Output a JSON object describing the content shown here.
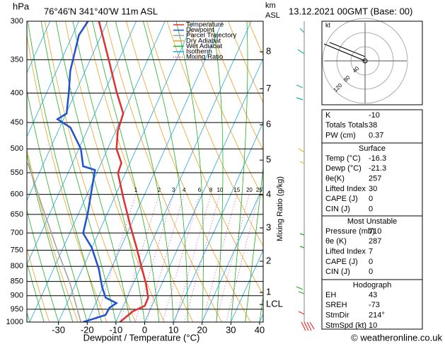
{
  "chart_data": {
    "type": "skewt",
    "title": "76°46'N  341°40'W  11m  ASL",
    "y_unit": "hPa",
    "km_unit": [
      "km",
      "ASL"
    ],
    "date": "13.12.2021  00GMT  (Base: 00)",
    "x_label": "Dewpoint / Temperature (°C)",
    "mixing_ratio_title": "Mixing Ratio (g/kg)",
    "xlim": [
      -40,
      41
    ],
    "xticks": [
      -30,
      -20,
      -10,
      0,
      10,
      20,
      30,
      40
    ],
    "ylim": [
      1000,
      300
    ],
    "log_scale": true,
    "yticks": [
      300,
      350,
      400,
      450,
      500,
      550,
      600,
      650,
      700,
      750,
      800,
      850,
      900,
      950,
      1000
    ],
    "km_ticks": [
      {
        "label": "8",
        "pressure": 339
      },
      {
        "label": "7",
        "pressure": 393
      },
      {
        "label": "6",
        "pressure": 454
      },
      {
        "label": "5",
        "pressure": 523
      },
      {
        "label": "4",
        "pressure": 601
      },
      {
        "label": "3",
        "pressure": 686
      },
      {
        "label": "2",
        "pressure": 784
      },
      {
        "label": "1",
        "pressure": 888
      },
      {
        "label": "LCL",
        "pressure": 932
      }
    ],
    "mixing_ratios": [
      1,
      2,
      3,
      4,
      6,
      8,
      10,
      15,
      20,
      25
    ],
    "legend": [
      {
        "name": "Temperature",
        "color": "#e03030",
        "style": "solid"
      },
      {
        "name": "Dewpoint",
        "color": "#2050d0",
        "style": "solid"
      },
      {
        "name": "Parcel Trajectory",
        "color": "#a0a0a0",
        "style": "solid"
      },
      {
        "name": "Dry Adiabat",
        "color": "#f0a020",
        "style": "solid"
      },
      {
        "name": "Wet Adiabat",
        "color": "#20b020",
        "style": "solid"
      },
      {
        "name": "Isotherm",
        "color": "#20a8e0",
        "style": "solid"
      },
      {
        "name": "Mixing Ratio",
        "color": "#d020c0",
        "style": "dotted"
      }
    ],
    "series": [
      {
        "name": "Temperature",
        "color": "#e03030",
        "pressure": [
          1000,
          958,
          937,
          907,
          857,
          797,
          742,
          682,
          609,
          551,
          529,
          500,
          465,
          434,
          398,
          355,
          300
        ],
        "values": [
          -8.6,
          -5.8,
          -2.5,
          -2.6,
          -5.6,
          -10.1,
          -14.5,
          -19.9,
          -26.8,
          -32.6,
          -33,
          -36.9,
          -39.3,
          -40.1,
          -45.8,
          -52.7,
          -63
        ]
      },
      {
        "name": "Dewpoint",
        "color": "#2050d0",
        "pressure": [
          1000,
          972,
          945,
          927,
          907,
          869,
          808,
          742,
          701,
          645,
          544,
          536,
          500,
          459,
          444,
          434,
          398,
          366,
          317,
          300
        ],
        "values": [
          -21.4,
          -14.7,
          -14.5,
          -12.8,
          -17.4,
          -20.3,
          -24.3,
          -30.1,
          -35.3,
          -36.9,
          -41.1,
          -45.8,
          -49.3,
          -56.3,
          -62.1,
          -59.8,
          -62.4,
          -65.2,
          -67.8,
          -66.8
        ]
      },
      {
        "name": "Parcel Trajectory",
        "color": "#a0a0a0",
        "pressure": [
          1000,
          857,
          742,
          627,
          529
        ],
        "values": [
          -22.2,
          -32,
          -42.4,
          -54,
          -65.6
        ]
      }
    ],
    "hodograph": {
      "unit": "kt",
      "rings": [
        {
          "value": 40,
          "label": "40"
        },
        {
          "value": 80,
          "label": "80"
        },
        {
          "value": 120,
          "label": "120"
        }
      ]
    },
    "indices": {
      "rows": [
        [
          "K",
          "-10"
        ],
        [
          "Totals Totals",
          "38"
        ],
        [
          "PW (cm)",
          "0.37"
        ]
      ]
    },
    "surface": {
      "title": "Surface",
      "rows": [
        [
          "Temp (°C)",
          "-16.3"
        ],
        [
          "Dewp (°C)",
          "-21.3"
        ],
        [
          "θe(K)",
          "257"
        ],
        [
          "Lifted Index",
          "30"
        ],
        [
          "CAPE (J)",
          "0"
        ],
        [
          "CIN (J)",
          "0"
        ]
      ]
    },
    "most_unstable": {
      "title": "Most Unstable",
      "rows": [
        [
          "Pressure (mb)",
          "710"
        ],
        [
          "θe (K)",
          "287"
        ],
        [
          "Lifted Index",
          "7"
        ],
        [
          "CAPE (J)",
          "0"
        ],
        [
          "CIN (J)",
          "0"
        ]
      ]
    },
    "hodograph_table": {
      "title": "Hodograph",
      "rows": [
        [
          "EH",
          "43"
        ],
        [
          "SREH",
          "-73"
        ],
        [
          "StmDir",
          "214°"
        ],
        [
          "StmSpd (kt)",
          "10"
        ]
      ]
    },
    "footer": "© weatheronline.co.uk"
  }
}
